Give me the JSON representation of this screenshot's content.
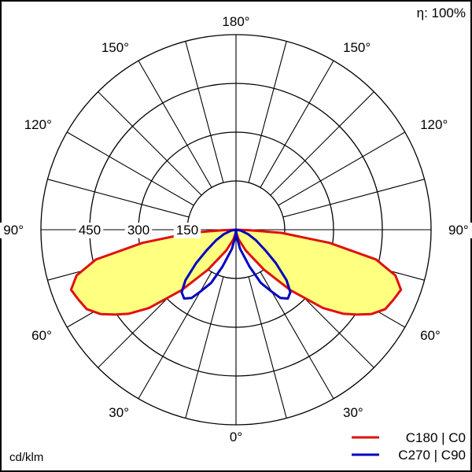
{
  "chart_data": {
    "type": "polar",
    "efficiency": "η: 100%",
    "unit": "cd/klm",
    "radial_ticks": [
      150,
      300,
      450
    ],
    "radial_max": 600,
    "angle_labels": {
      "bottom": "0°",
      "left": [
        "30°",
        "60°",
        "90°",
        "120°",
        "150°"
      ],
      "right": [
        "30°",
        "60°",
        "90°",
        "120°",
        "150°"
      ],
      "top": "180°"
    },
    "series": [
      {
        "name": "C180 | C0",
        "color": "#e01010",
        "fill": "#ffff80",
        "points": [
          [
            0,
            0
          ],
          [
            5,
            10
          ],
          [
            15,
            30
          ],
          [
            25,
            70
          ],
          [
            35,
            150
          ],
          [
            42,
            250
          ],
          [
            48,
            360
          ],
          [
            52,
            420
          ],
          [
            55,
            455
          ],
          [
            58,
            490
          ],
          [
            62,
            520
          ],
          [
            66,
            530
          ],
          [
            70,
            540
          ],
          [
            74,
            510
          ],
          [
            78,
            440
          ],
          [
            82,
            290
          ],
          [
            86,
            140
          ],
          [
            88,
            40
          ],
          [
            90,
            0
          ]
        ]
      },
      {
        "name": "C270 | C90",
        "color": "#0000c0",
        "points": [
          [
            0,
            0
          ],
          [
            5,
            20
          ],
          [
            12,
            60
          ],
          [
            20,
            120
          ],
          [
            25,
            180
          ],
          [
            30,
            220
          ],
          [
            33,
            250
          ],
          [
            37,
            265
          ],
          [
            41,
            255
          ],
          [
            45,
            220
          ],
          [
            50,
            160
          ],
          [
            55,
            110
          ],
          [
            62,
            70
          ],
          [
            70,
            40
          ],
          [
            80,
            15
          ],
          [
            90,
            0
          ]
        ]
      }
    ]
  }
}
